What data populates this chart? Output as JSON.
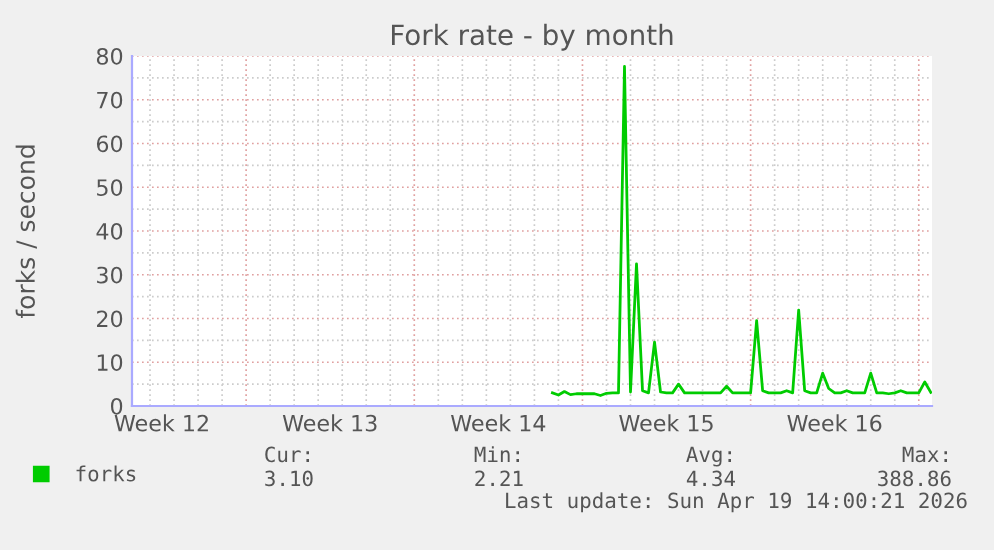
{
  "chart_data": {
    "type": "line",
    "title": "Fork rate - by month",
    "ylabel": "forks / second",
    "categories": [
      null,
      null,
      null,
      null,
      "Week 12",
      null,
      null,
      null,
      null,
      null,
      null,
      null,
      null,
      null,
      null,
      null,
      null,
      null,
      null,
      null,
      null,
      null,
      null,
      null,
      null,
      null,
      null,
      null,
      null,
      null,
      null,
      null,
      "Week 13",
      null,
      null,
      null,
      null,
      null,
      null,
      null,
      null,
      null,
      null,
      null,
      null,
      null,
      null,
      null,
      null,
      null,
      null,
      null,
      null,
      null,
      null,
      null,
      null,
      null,
      null,
      null,
      "Week 14",
      null,
      null,
      null,
      null,
      null,
      null,
      null,
      null,
      null,
      null,
      null,
      null,
      null,
      null,
      null,
      null,
      null,
      null,
      null,
      null,
      null,
      null,
      null,
      null,
      null,
      null,
      null,
      "Week 15",
      null,
      null,
      null,
      null,
      null,
      null,
      null,
      null,
      null,
      null,
      null,
      null,
      null,
      null,
      null,
      null,
      null,
      null,
      null,
      null,
      null,
      null,
      null,
      null,
      null,
      null,
      null,
      "Week 16",
      null,
      null,
      null,
      null,
      null,
      null,
      null,
      null,
      null,
      null,
      null,
      null,
      null,
      null,
      null,
      null
    ],
    "ylim": [
      0,
      80
    ],
    "yticks": [
      0,
      10,
      20,
      30,
      40,
      50,
      60,
      70,
      80
    ],
    "grid": true,
    "legend": "bottom left",
    "series": [
      {
        "name": "forks",
        "color": "#00cc00",
        "values": [
          null,
          null,
          null,
          null,
          null,
          null,
          null,
          null,
          null,
          null,
          null,
          null,
          null,
          null,
          null,
          null,
          null,
          null,
          null,
          null,
          null,
          null,
          null,
          null,
          null,
          null,
          null,
          null,
          null,
          null,
          null,
          null,
          null,
          null,
          null,
          null,
          null,
          null,
          null,
          null,
          null,
          null,
          null,
          null,
          null,
          null,
          null,
          null,
          null,
          null,
          null,
          null,
          null,
          null,
          null,
          null,
          null,
          null,
          null,
          null,
          null,
          null,
          null,
          null,
          null,
          null,
          null,
          null,
          null,
          3.0,
          2.5,
          3.3,
          2.6,
          2.8,
          2.8,
          2.8,
          2.8,
          2.4,
          2.9,
          3.0,
          3.0,
          77.6,
          3.2,
          32.5,
          3.5,
          3.0,
          14.6,
          3.2,
          3.0,
          3.0,
          5.0,
          3.0,
          3.0,
          3.0,
          3.0,
          3.0,
          3.0,
          3.0,
          4.5,
          3.0,
          3.0,
          3.0,
          3.0,
          19.5,
          3.5,
          3.0,
          3.0,
          3.0,
          3.5,
          3.0,
          21.9,
          3.5,
          3.0,
          3.0,
          7.5,
          4.0,
          3.0,
          3.0,
          3.5,
          3.0,
          3.0,
          3.0,
          7.5,
          3.0,
          3.0,
          2.8,
          3.0,
          3.5,
          3.0,
          3.0,
          3.0,
          5.5,
          3.1
        ]
      }
    ],
    "annotations": [
      "Cur:",
      "Min:",
      "Avg:",
      "Max:",
      "3.10",
      "2.21",
      "4.34",
      "388.86",
      "Last update: Sun Apr 19 14:00:21 2026"
    ]
  }
}
